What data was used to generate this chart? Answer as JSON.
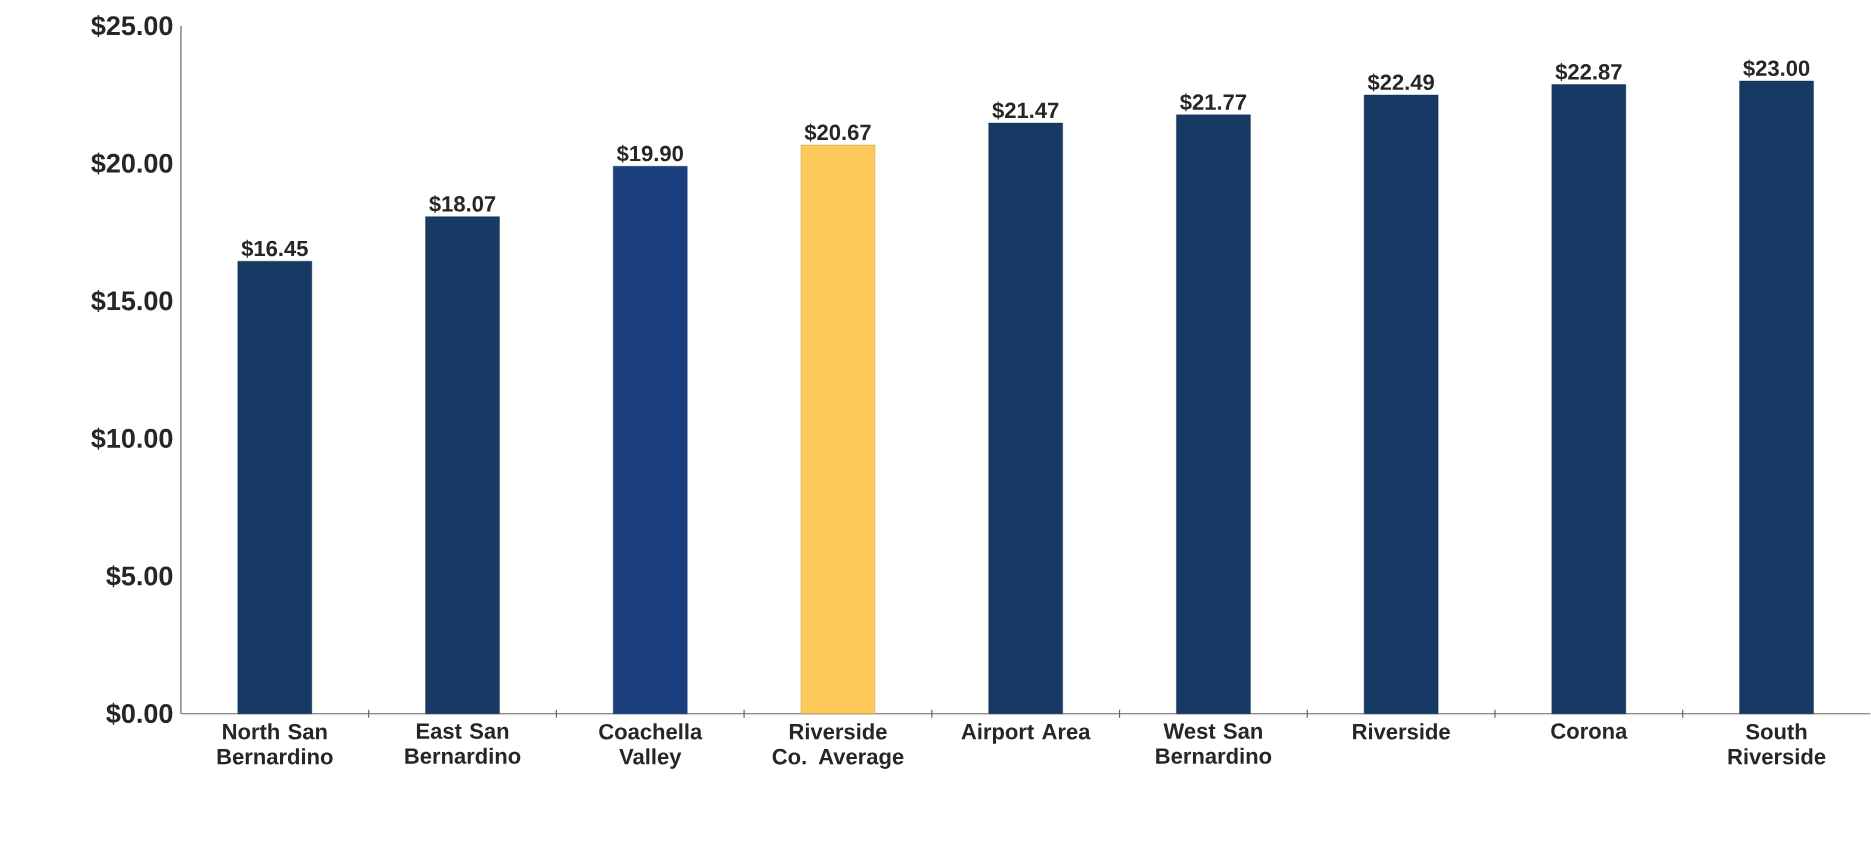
{
  "chart_data": {
    "type": "bar",
    "categories": [
      "North San Bernardino",
      "East San Bernardino",
      "Coachella Valley",
      "Riverside Co. Average",
      "Airport Area",
      "West San Bernardino",
      "Riverside",
      "Corona",
      "South Riverside"
    ],
    "values": [
      16.45,
      18.07,
      19.9,
      20.67,
      21.47,
      21.77,
      22.49,
      22.87,
      23.0
    ],
    "colors": [
      "#163a63",
      "#163a63",
      "#1c3f80",
      "#fcc95a",
      "#163a63",
      "#163a63",
      "#163a63",
      "#163a63",
      "#163a63"
    ],
    "value_labels": [
      "$16.45",
      "$18.07",
      "$19.90",
      "$20.67",
      "$21.47",
      "$21.77",
      "$22.49",
      "$22.87",
      "$23.00"
    ],
    "ylim": [
      0,
      25
    ],
    "yticks": [
      {
        "value": 0,
        "label": "$0.00"
      },
      {
        "value": 5,
        "label": "$5.00"
      },
      {
        "value": 10,
        "label": "$10.00"
      },
      {
        "value": 15,
        "label": "$15.00"
      },
      {
        "value": 20,
        "label": "$20.00"
      },
      {
        "value": 25,
        "label": "$25.00"
      }
    ],
    "grid": false
  }
}
